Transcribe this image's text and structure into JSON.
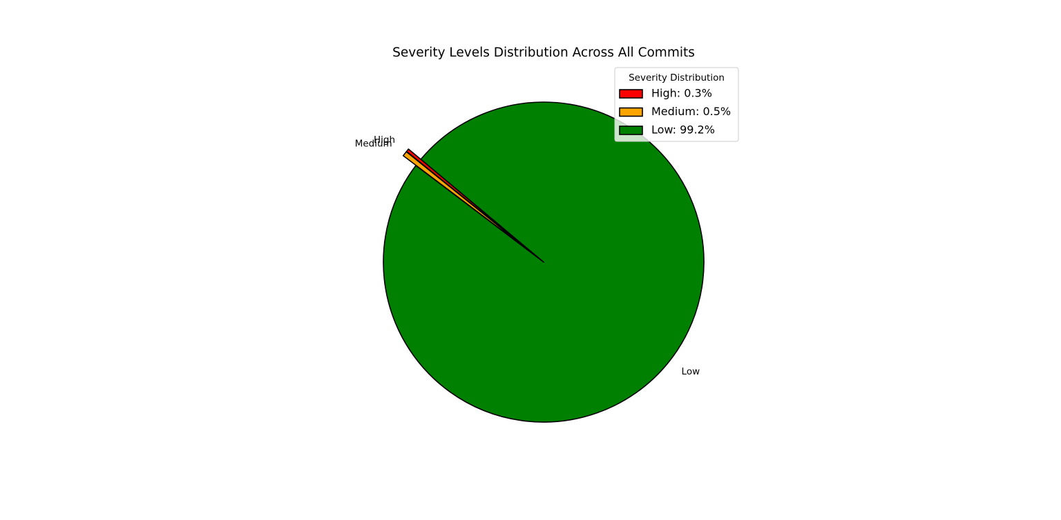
{
  "chart_data": {
    "type": "pie",
    "title": "Severity Levels Distribution Across All Commits",
    "slices": [
      {
        "label": "High",
        "percent": 0.3,
        "color": "#ff0000",
        "exploded": true
      },
      {
        "label": "Medium",
        "percent": 0.5,
        "color": "#ffa500",
        "exploded": true
      },
      {
        "label": "Low",
        "percent": 99.2,
        "color": "#008000",
        "exploded": false
      }
    ],
    "start_angle_deg": 140,
    "counterclockwise": true,
    "edge_color": "#000000",
    "legend": {
      "title": "Severity Distribution",
      "placement": "top-right",
      "entries": [
        "High: 0.3%",
        "Medium: 0.5%",
        "Low: 99.2%"
      ]
    }
  }
}
